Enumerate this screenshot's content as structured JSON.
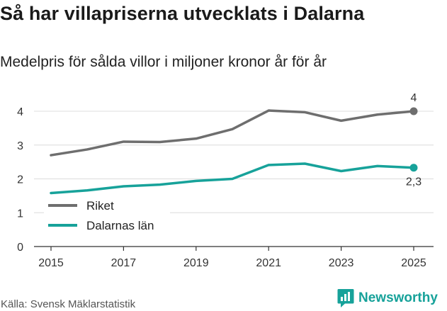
{
  "title": "Så har villapriserna utvecklats i Dalarna",
  "subtitle": "Medelpris för sålda villor i miljoner kronor år för år",
  "source": "Källa: Svensk Mäklarstatistik",
  "brand": "Newsworthy",
  "colors": {
    "riket": "#6e6e6e",
    "dalarna": "#17a29a",
    "grid": "#dcdcdc",
    "axis": "#333333",
    "brand": "#17a29a"
  },
  "chart_data": {
    "type": "line",
    "title": "Så har villapriserna utvecklats i Dalarna",
    "subtitle": "Medelpris för sålda villor i miljoner kronor år för år",
    "xlabel": "",
    "ylabel": "",
    "x": [
      2015,
      2016,
      2017,
      2018,
      2019,
      2020,
      2021,
      2022,
      2023,
      2024,
      2025
    ],
    "xticks": [
      "2015",
      "2017",
      "2019",
      "2021",
      "2023",
      "2025"
    ],
    "yticks": [
      "0",
      "1",
      "2",
      "3",
      "4"
    ],
    "xlim": [
      2015,
      2025
    ],
    "ylim": [
      0,
      4
    ],
    "grid": true,
    "legend_position": "lower-left",
    "series": [
      {
        "name": "Riket",
        "color": "#6e6e6e",
        "values": [
          2.7,
          2.87,
          3.1,
          3.09,
          3.19,
          3.47,
          4.02,
          3.97,
          3.72,
          3.9,
          4.0
        ],
        "end_label": "4"
      },
      {
        "name": "Dalarnas län",
        "color": "#17a29a",
        "values": [
          1.58,
          1.66,
          1.78,
          1.83,
          1.94,
          2.0,
          2.41,
          2.45,
          2.23,
          2.38,
          2.33
        ],
        "end_label": "2,3"
      }
    ]
  }
}
